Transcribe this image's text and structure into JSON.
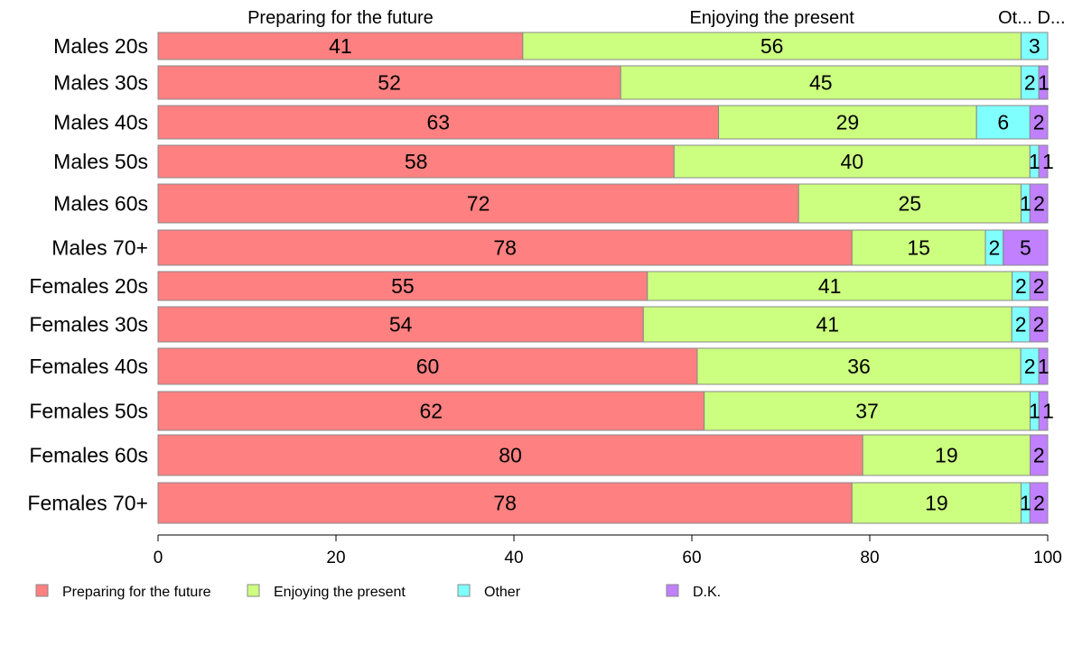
{
  "chart_data": {
    "type": "bar",
    "orientation": "horizontal",
    "stacked": true,
    "xlim": [
      0,
      100
    ],
    "xticks": [
      "0",
      "20",
      "40",
      "60",
      "80",
      "100"
    ],
    "top_labels": [
      "Preparing for the future",
      "Enjoying the present",
      "Ot...",
      "D..."
    ],
    "categories": [
      "Males 20s",
      "Males 30s",
      "Males 40s",
      "Males 50s",
      "Males 60s",
      "Males 70+",
      "Females 20s",
      "Females 30s",
      "Females 40s",
      "Females 50s",
      "Females 60s",
      "Females 70+"
    ],
    "series": [
      {
        "name": "Preparing for the future",
        "color": "#FF8080",
        "values": [
          41,
          52,
          63,
          58,
          72,
          78,
          55,
          54,
          60,
          62,
          80,
          78
        ]
      },
      {
        "name": "Enjoying the present",
        "color": "#CCFF80",
        "values": [
          56,
          45,
          29,
          40,
          25,
          15,
          41,
          41,
          36,
          37,
          19,
          19
        ]
      },
      {
        "name": "Other",
        "color": "#80FFFF",
        "values": [
          3,
          2,
          6,
          1,
          1,
          2,
          2,
          2,
          2,
          1,
          0,
          1
        ]
      },
      {
        "name": "D.K.",
        "color": "#C080FF",
        "values": [
          0,
          1,
          2,
          1,
          2,
          5,
          2,
          2,
          1,
          1,
          2,
          2
        ]
      }
    ],
    "legend": "bottom"
  }
}
